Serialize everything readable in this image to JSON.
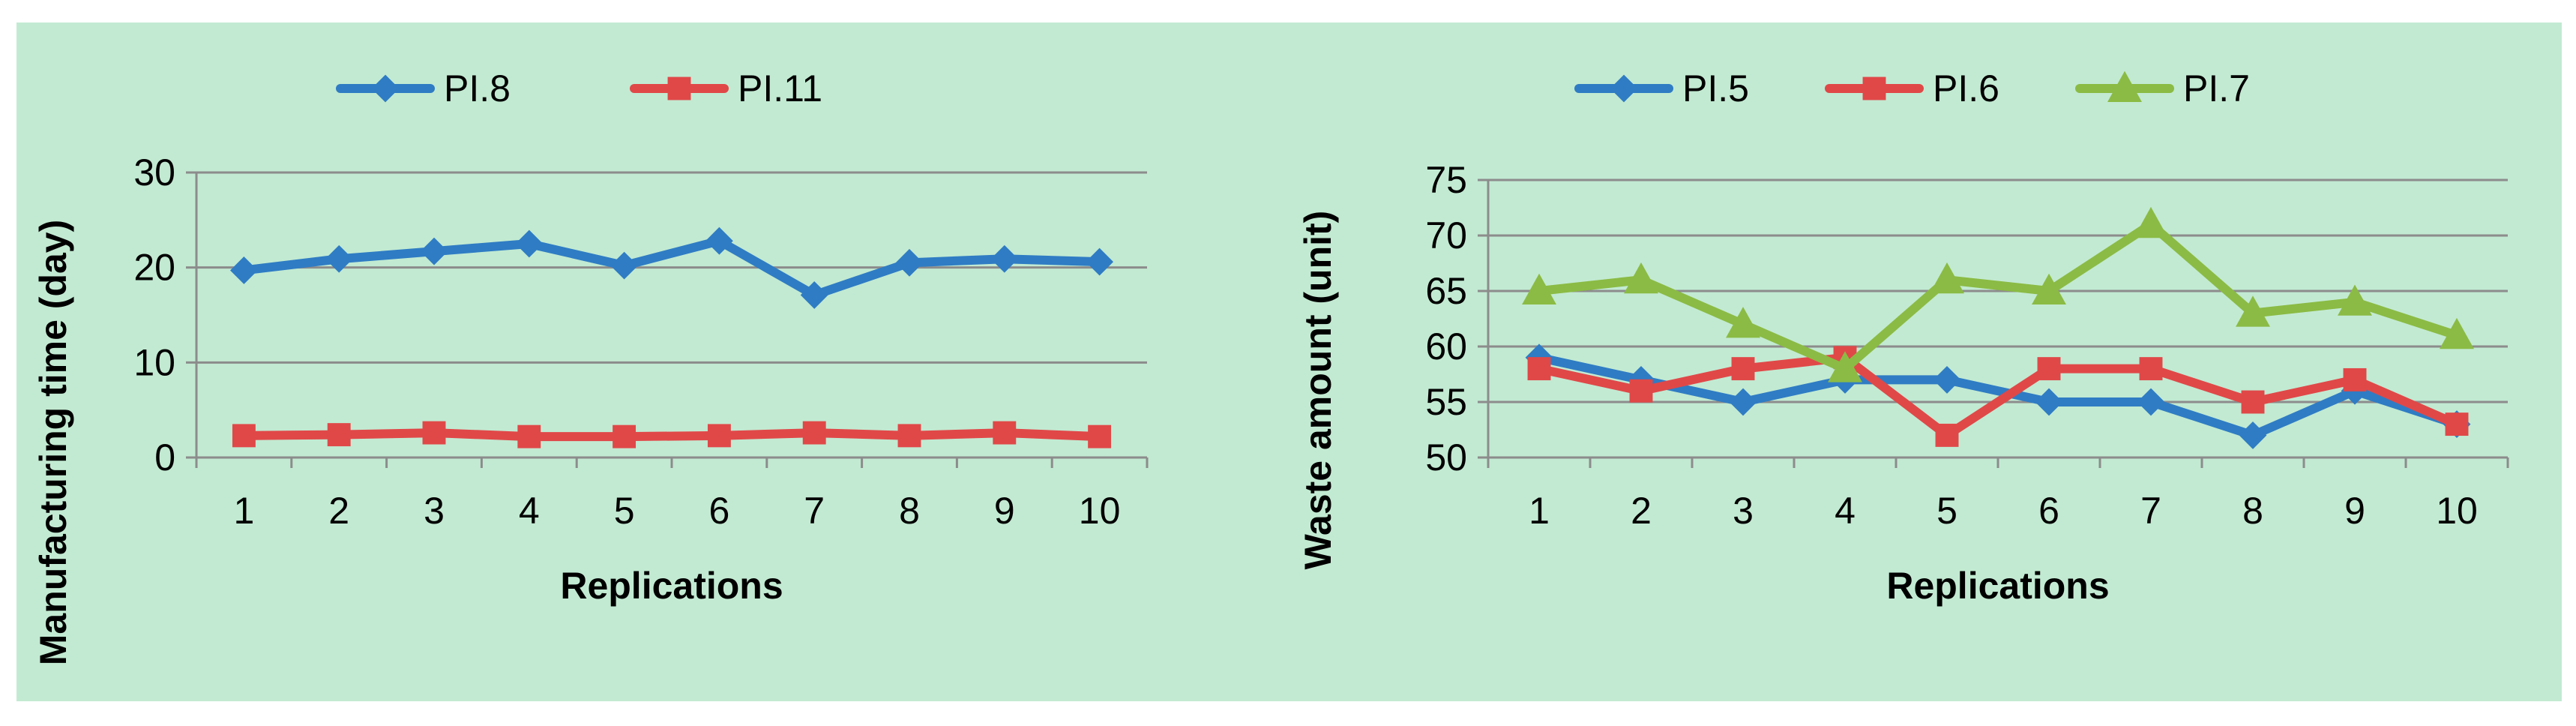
{
  "colors": {
    "panel_bg": "#c2ead2",
    "page_bg": "#ffffff",
    "grid": "#8c8c8c",
    "axis": "#8c8c8c",
    "text": "#000000",
    "blue": "#2f7cc4",
    "red": "#e04848",
    "green": "#8bbb44"
  },
  "chart_data": [
    {
      "type": "line",
      "title": "",
      "xlabel": "Replications",
      "ylabel": "Manufacturing time (day)",
      "categories": [
        "1",
        "2",
        "3",
        "4",
        "5",
        "6",
        "7",
        "8",
        "9",
        "10"
      ],
      "ylim": [
        0,
        30
      ],
      "yticks": [
        0,
        10,
        20,
        30
      ],
      "grid": true,
      "legend": "top-center",
      "series": [
        {
          "name": "PI.8",
          "color": "#2f7cc4",
          "marker": "diamond",
          "values": [
            19.7,
            20.9,
            21.7,
            22.5,
            20.2,
            22.8,
            17.1,
            20.5,
            20.9,
            20.6
          ]
        },
        {
          "name": "PI.11",
          "color": "#e04848",
          "marker": "square",
          "values": [
            2.3,
            2.4,
            2.6,
            2.2,
            2.2,
            2.3,
            2.6,
            2.3,
            2.6,
            2.2
          ]
        }
      ]
    },
    {
      "type": "line",
      "title": "",
      "xlabel": "Replications",
      "ylabel": "Waste amount (unit)",
      "categories": [
        "1",
        "2",
        "3",
        "4",
        "5",
        "6",
        "7",
        "8",
        "9",
        "10"
      ],
      "ylim": [
        50,
        75
      ],
      "yticks": [
        50,
        55,
        60,
        65,
        70,
        75
      ],
      "grid": true,
      "legend": "top-center",
      "series": [
        {
          "name": "PI.5",
          "color": "#2f7cc4",
          "marker": "diamond",
          "values": [
            59,
            57,
            55,
            57,
            57,
            55,
            55,
            52,
            56,
            53
          ]
        },
        {
          "name": "PI.6",
          "color": "#e04848",
          "marker": "square",
          "values": [
            58,
            56,
            58,
            59,
            52,
            58,
            58,
            55,
            57,
            53
          ]
        },
        {
          "name": "PI.7",
          "color": "#8bbb44",
          "marker": "triangle",
          "values": [
            65,
            66,
            62,
            58,
            66,
            65,
            71,
            63,
            64,
            61
          ]
        }
      ]
    }
  ]
}
